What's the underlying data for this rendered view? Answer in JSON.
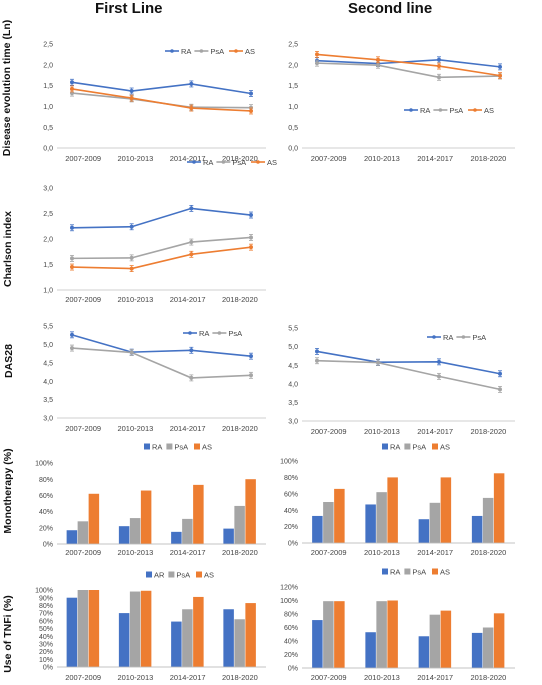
{
  "column_titles": [
    "First Line",
    "Second line"
  ],
  "row_labels": [
    "Disease evolution time (Ln)",
    "Charlson index",
    "DAS28",
    "Monotherapy (%)",
    "Use of TNFi (%)"
  ],
  "colors": {
    "RA": "#4472C4",
    "PsA": "#A5A5A5",
    "AS": "#ED7D31"
  },
  "chart_data": [
    {
      "type": "line",
      "panel": "Disease evolution time - First Line",
      "categories": [
        "2007-2009",
        "2010-2013",
        "2014-2017",
        "2018-2020"
      ],
      "ylim": [
        0,
        2.5
      ],
      "yticks": [
        "0,0",
        "0,5",
        "1,0",
        "1,5",
        "2,0",
        "2,5"
      ],
      "ystep": 0.5,
      "legend": "top-right",
      "error_bars": true,
      "series": [
        {
          "name": "RA",
          "values": [
            1.58,
            1.37,
            1.54,
            1.31
          ]
        },
        {
          "name": "PsA",
          "values": [
            1.32,
            1.18,
            0.98,
            0.97
          ]
        },
        {
          "name": "AS",
          "values": [
            1.42,
            1.2,
            0.96,
            0.89
          ]
        }
      ]
    },
    {
      "type": "line",
      "panel": "Disease evolution time - Second line",
      "categories": [
        "2007-2009",
        "2010-2013",
        "2014-2017",
        "2018-2020"
      ],
      "ylim": [
        0,
        2.5
      ],
      "yticks": [
        "0,0",
        "0,5",
        "1,0",
        "1,5",
        "2,0",
        "2,5"
      ],
      "ystep": 0.5,
      "legend": "right",
      "error_bars": true,
      "series": [
        {
          "name": "RA",
          "values": [
            2.1,
            2.03,
            2.12,
            1.95
          ]
        },
        {
          "name": "PsA",
          "values": [
            2.04,
            1.99,
            1.7,
            1.73
          ]
        },
        {
          "name": "AS",
          "values": [
            2.25,
            2.12,
            1.97,
            1.74
          ]
        }
      ]
    },
    {
      "type": "line",
      "panel": "Charlson index - First Line",
      "categories": [
        "2007-2009",
        "2010-2013",
        "2014-2017",
        "2018-2020"
      ],
      "ylim": [
        1,
        3
      ],
      "yticks": [
        "1,0",
        "1,5",
        "2,0",
        "2,5",
        "3,0"
      ],
      "ystep": 0.5,
      "legend": "top-right",
      "error_bars": true,
      "series": [
        {
          "name": "RA",
          "values": [
            2.22,
            2.24,
            2.6,
            2.47
          ]
        },
        {
          "name": "PsA",
          "values": [
            1.62,
            1.63,
            1.94,
            2.03
          ]
        },
        {
          "name": "AS",
          "values": [
            1.45,
            1.42,
            1.7,
            1.84
          ]
        }
      ]
    },
    {
      "type": "line",
      "panel": "DAS28 - First Line",
      "categories": [
        "2007-2009",
        "2010-2013",
        "2014-2017",
        "2018-2020"
      ],
      "ylim": [
        3,
        5.5
      ],
      "yticks": [
        "3,0",
        "3,5",
        "4,0",
        "4,5",
        "5,0",
        "5,5"
      ],
      "ystep": 0.5,
      "legend": "top-right",
      "error_bars": true,
      "series": [
        {
          "name": "RA",
          "values": [
            5.26,
            4.79,
            4.84,
            4.68
          ]
        },
        {
          "name": "PsA",
          "values": [
            4.9,
            4.78,
            4.09,
            4.16
          ]
        }
      ]
    },
    {
      "type": "line",
      "panel": "DAS28 - Second line",
      "categories": [
        "2007-2009",
        "2010-2013",
        "2014-2017",
        "2018-2020"
      ],
      "ylim": [
        3,
        5.5
      ],
      "yticks": [
        "3,0",
        "3,5",
        "4,0",
        "4,5",
        "5,0",
        "5,5"
      ],
      "ystep": 0.5,
      "legend": "top-right",
      "error_bars": true,
      "series": [
        {
          "name": "RA",
          "values": [
            4.87,
            4.58,
            4.59,
            4.27
          ]
        },
        {
          "name": "PsA",
          "values": [
            4.62,
            4.57,
            4.2,
            3.85
          ]
        }
      ]
    },
    {
      "type": "bar",
      "panel": "Monotherapy - First Line",
      "categories": [
        "2007-2009",
        "2010-2013",
        "2014-2017",
        "2018-2020"
      ],
      "ylim": [
        0,
        100
      ],
      "yticks": [
        "0%",
        "20%",
        "40%",
        "60%",
        "80%",
        "100%"
      ],
      "ystep": 20,
      "legend": "top",
      "series": [
        {
          "name": "RA",
          "values": [
            17,
            22,
            15,
            19
          ]
        },
        {
          "name": "PsA",
          "values": [
            28,
            32,
            31,
            47
          ]
        },
        {
          "name": "AS",
          "values": [
            62,
            66,
            73,
            80
          ]
        }
      ]
    },
    {
      "type": "bar",
      "panel": "Monotherapy - Second line",
      "categories": [
        "2007-2009",
        "2010-2013",
        "2014-2017",
        "2018-2020"
      ],
      "ylim": [
        0,
        100
      ],
      "yticks": [
        "0%",
        "20%",
        "40%",
        "60%",
        "80%",
        "100%"
      ],
      "ystep": 20,
      "legend": "top",
      "series": [
        {
          "name": "RA",
          "values": [
            33,
            47,
            29,
            33
          ]
        },
        {
          "name": "PsA",
          "values": [
            50,
            62,
            49,
            55
          ]
        },
        {
          "name": "AS",
          "values": [
            66,
            80,
            80,
            85
          ]
        }
      ]
    },
    {
      "type": "bar",
      "panel": "Use of TNFi - First Line",
      "categories": [
        "2007-2009",
        "2010-2013",
        "2014-2017",
        "2018-2020"
      ],
      "ylim": [
        0,
        100
      ],
      "yticks": [
        "0%",
        "10%",
        "20%",
        "30%",
        "40%",
        "50%",
        "60%",
        "70%",
        "80%",
        "90%",
        "100%"
      ],
      "ystep": 10,
      "legend": "top",
      "series": [
        {
          "name": "AR",
          "values": [
            90,
            70,
            59,
            75
          ]
        },
        {
          "name": "PsA",
          "values": [
            100,
            98,
            75,
            62
          ]
        },
        {
          "name": "AS",
          "values": [
            100,
            99,
            91,
            83
          ]
        }
      ]
    },
    {
      "type": "bar",
      "panel": "Use of TNFi - Second line",
      "categories": [
        "2007-2009",
        "2010-2013",
        "2014-2017",
        "2018-2020"
      ],
      "ylim": [
        0,
        120
      ],
      "yticks": [
        "0%",
        "20%",
        "40%",
        "60%",
        "80%",
        "100%",
        "120%"
      ],
      "ystep": 20,
      "legend": "top",
      "series": [
        {
          "name": "RA",
          "values": [
            71,
            53,
            47,
            52
          ]
        },
        {
          "name": "PsA",
          "values": [
            99,
            99,
            79,
            60
          ]
        },
        {
          "name": "AS",
          "values": [
            99,
            100,
            85,
            81
          ]
        }
      ]
    }
  ]
}
